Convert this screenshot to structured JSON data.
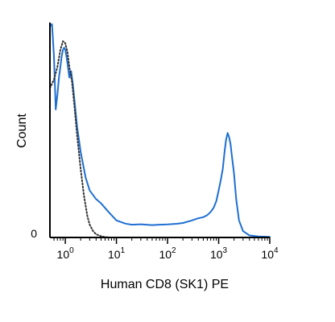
{
  "chart_data": {
    "type": "line",
    "xlabel": "Human CD8 (SK1) PE",
    "ylabel": "Count",
    "x_scale": "log",
    "xlim": [
      0.5,
      10000
    ],
    "ylim": [
      0,
      100
    ],
    "grid": false,
    "legend": "none",
    "x_ticks": [
      {
        "value": 1,
        "base": "10",
        "exp": "0"
      },
      {
        "value": 10,
        "base": "10",
        "exp": "1"
      },
      {
        "value": 100,
        "base": "10",
        "exp": "2"
      },
      {
        "value": 1000,
        "base": "10",
        "exp": "3"
      },
      {
        "value": 10000,
        "base": "10",
        "exp": "4"
      }
    ],
    "y_ticks": [
      {
        "value": 0,
        "label": "0"
      }
    ],
    "series": [
      {
        "style": "solid",
        "color": "#1f6fd1",
        "x": [
          0.5,
          0.55,
          0.6,
          0.65,
          0.7,
          0.75,
          0.8,
          0.85,
          0.9,
          0.95,
          1.0,
          1.05,
          1.1,
          1.2,
          1.3,
          1.4,
          1.5,
          1.7,
          2.0,
          2.5,
          3.0,
          4.0,
          5.0,
          7.0,
          10,
          15,
          20,
          30,
          50,
          70,
          100,
          150,
          200,
          300,
          400,
          500,
          600,
          700,
          800,
          900,
          1000,
          1100,
          1200,
          1300,
          1400,
          1500,
          1600,
          1700,
          1800,
          2000,
          2200,
          2500,
          3000,
          4000,
          6000,
          10000
        ],
        "y": [
          99,
          100,
          85,
          60,
          67,
          75,
          80,
          85,
          88,
          89,
          88,
          85,
          82,
          75,
          78,
          72,
          65,
          52,
          40,
          28,
          22,
          18,
          16,
          12,
          8,
          6.5,
          6.0,
          6.2,
          5.8,
          6.0,
          6.1,
          6.4,
          6.8,
          8.0,
          9.0,
          9.5,
          10.5,
          12.0,
          14.0,
          17.0,
          22.0,
          27.0,
          32.0,
          40.0,
          46.0,
          49.0,
          47.0,
          44.0,
          39.0,
          30.0,
          18.0,
          8.0,
          3.0,
          1.0,
          0.5,
          0.3
        ]
      },
      {
        "style": "dotted",
        "color": "#333333",
        "x": [
          0.5,
          0.6,
          0.7,
          0.8,
          0.9,
          1.0,
          1.1,
          1.2,
          1.35,
          1.5,
          1.7,
          2.0,
          2.3,
          2.7,
          3.0,
          3.5,
          4.0,
          5.0,
          6.0,
          8.0,
          10,
          15
        ],
        "y": [
          70,
          74,
          80,
          88,
          92,
          91,
          87,
          80,
          73,
          62,
          48,
          32,
          20,
          10,
          6,
          3,
          1.5,
          0.6,
          0.2,
          0,
          0,
          0
        ]
      }
    ]
  }
}
